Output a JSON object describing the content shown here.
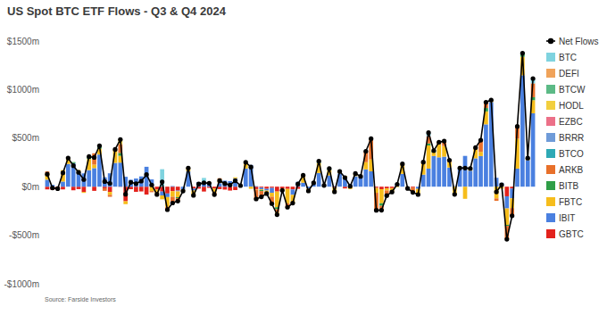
{
  "chart_data": {
    "type": "bar",
    "title": "US Spot BTC ETF Flows - Q3 & Q4 2024",
    "source": "Source: Farside Investors",
    "stacked": true,
    "grid": false,
    "legend": "right",
    "tick_labels": "y",
    "ylim": [
      -1000,
      1500
    ],
    "yticks": [
      {
        "value": -1000,
        "label": "-$1000m"
      },
      {
        "value": -500,
        "label": "-$500m"
      },
      {
        "value": 0,
        "label": "$0m"
      },
      {
        "value": 500,
        "label": "$500m"
      },
      {
        "value": 1000,
        "label": "$1000m"
      },
      {
        "value": 1500,
        "label": "$1500m"
      }
    ],
    "categories": [
      null,
      null,
      null,
      null,
      null,
      null,
      null,
      null,
      null,
      null,
      null,
      null,
      null,
      null,
      null,
      null,
      null,
      null,
      null,
      null,
      null,
      null,
      null,
      null,
      null,
      null,
      null,
      null,
      null,
      null,
      null,
      null,
      null,
      null,
      null,
      null,
      null,
      null,
      null,
      null,
      null,
      null,
      null,
      null,
      null,
      null,
      null,
      null,
      null,
      null,
      null,
      null,
      null,
      null,
      null,
      null,
      null,
      null,
      null,
      null,
      null,
      null,
      null,
      null,
      null,
      null,
      null,
      null,
      null,
      null,
      null,
      null,
      null,
      null,
      null,
      null,
      null,
      null,
      null,
      null,
      null,
      null,
      null,
      null,
      null,
      null,
      null,
      null,
      null,
      null,
      null,
      null,
      null,
      null
    ],
    "series": [
      {
        "name": "Net Flows",
        "type": "line",
        "color": "#000000",
        "marker": "circle",
        "values": [
          129,
          -13,
          -20,
          143,
          295,
          216,
          147,
          73,
          310,
          301,
          422,
          53,
          34,
          384,
          486,
          -78,
          45,
          31,
          57,
          124,
          18,
          -80,
          50,
          -237,
          -168,
          -148,
          -45,
          192,
          -89,
          28,
          40,
          36,
          -82,
          62,
          32,
          17,
          61,
          11,
          252,
          202,
          -127,
          -105,
          -71,
          -175,
          -288,
          -38,
          -212,
          -169,
          28,
          117,
          -44,
          39,
          263,
          13,
          187,
          -53,
          158,
          93,
          4,
          136,
          106,
          365,
          494,
          -243,
          -242,
          -92,
          -55,
          25,
          235,
          -18,
          -59,
          -81,
          253,
          556,
          371,
          458,
          470,
          273,
          -79,
          192,
          192,
          188,
          402,
          479,
          870,
          893,
          -54,
          20,
          -541,
          -300,
          621,
          1376,
          294,
          1114
        ]
      },
      {
        "name": "BTC",
        "type": "bar",
        "color": "#7fd3df",
        "values": [
          0,
          0,
          0,
          0,
          0,
          0,
          0,
          0,
          0,
          0,
          0,
          0,
          0,
          0,
          0,
          0,
          0,
          0,
          0,
          0,
          0,
          0,
          180,
          0,
          0,
          0,
          0,
          0,
          0,
          0,
          40,
          0,
          0,
          0,
          0,
          0,
          0,
          0,
          0,
          0,
          0,
          0,
          0,
          0,
          0,
          0,
          0,
          0,
          0,
          0,
          0,
          0,
          0,
          0,
          0,
          0,
          0,
          0,
          0,
          0,
          0,
          0,
          0,
          0,
          0,
          0,
          0,
          0,
          0,
          0,
          0,
          0,
          0,
          37,
          0,
          0,
          0,
          0,
          0,
          0,
          0,
          0,
          0,
          0,
          0,
          0,
          0,
          0,
          0,
          0,
          0,
          0,
          0,
          50
        ]
      },
      {
        "name": "DEFI",
        "type": "bar",
        "color": "#f0a35a",
        "values": [
          0,
          0,
          0,
          0,
          0,
          0,
          0,
          0,
          0,
          0,
          0,
          0,
          0,
          0,
          0,
          0,
          0,
          0,
          0,
          0,
          0,
          0,
          0,
          0,
          0,
          0,
          0,
          0,
          0,
          0,
          0,
          0,
          0,
          0,
          0,
          0,
          0,
          0,
          0,
          0,
          0,
          0,
          0,
          0,
          0,
          0,
          0,
          0,
          0,
          0,
          0,
          0,
          0,
          0,
          0,
          0,
          0,
          0,
          0,
          0,
          0,
          0,
          0,
          0,
          0,
          0,
          0,
          0,
          0,
          0,
          0,
          0,
          0,
          0,
          0,
          0,
          0,
          0,
          0,
          0,
          0,
          0,
          0,
          0,
          0,
          0,
          0,
          0,
          0,
          0,
          0,
          0,
          0,
          0
        ]
      },
      {
        "name": "BTCW",
        "type": "bar",
        "color": "#5cba86",
        "values": [
          0,
          0,
          0,
          0,
          0,
          0,
          0,
          0,
          0,
          0,
          0,
          0,
          0,
          0,
          0,
          0,
          0,
          0,
          0,
          0,
          0,
          0,
          0,
          0,
          0,
          0,
          0,
          0,
          0,
          0,
          0,
          0,
          0,
          0,
          0,
          0,
          0,
          0,
          0,
          0,
          0,
          0,
          0,
          0,
          0,
          0,
          0,
          0,
          0,
          0,
          0,
          0,
          0,
          0,
          0,
          0,
          0,
          0,
          0,
          0,
          0,
          0,
          10,
          0,
          0,
          0,
          0,
          0,
          0,
          0,
          0,
          0,
          0,
          0,
          0,
          0,
          0,
          0,
          0,
          0,
          0,
          0,
          0,
          0,
          0,
          0,
          0,
          0,
          0,
          0,
          0,
          0,
          0,
          0
        ]
      },
      {
        "name": "HODL",
        "type": "bar",
        "color": "#f2cf3e",
        "values": [
          0,
          0,
          0,
          0,
          0,
          0,
          0,
          0,
          0,
          0,
          0,
          0,
          0,
          0,
          50,
          0,
          0,
          0,
          0,
          0,
          0,
          0,
          0,
          0,
          0,
          0,
          0,
          0,
          0,
          0,
          0,
          0,
          0,
          0,
          0,
          0,
          0,
          0,
          0,
          0,
          0,
          0,
          0,
          0,
          -22,
          0,
          0,
          0,
          0,
          0,
          0,
          0,
          0,
          0,
          0,
          0,
          0,
          0,
          0,
          0,
          0,
          0,
          0,
          0,
          0,
          0,
          0,
          0,
          0,
          0,
          0,
          0,
          0,
          0,
          0,
          0,
          0,
          0,
          0,
          0,
          0,
          0,
          0,
          0,
          0,
          0,
          0,
          0,
          0,
          0,
          0,
          0,
          0,
          0
        ]
      },
      {
        "name": "EZBC",
        "type": "bar",
        "color": "#ec7088",
        "values": [
          0,
          0,
          0,
          0,
          0,
          0,
          0,
          0,
          0,
          0,
          0,
          0,
          0,
          0,
          0,
          0,
          0,
          0,
          0,
          0,
          0,
          0,
          0,
          0,
          0,
          0,
          0,
          0,
          0,
          0,
          0,
          0,
          0,
          0,
          0,
          0,
          0,
          0,
          0,
          0,
          0,
          0,
          0,
          0,
          0,
          0,
          0,
          0,
          0,
          0,
          0,
          0,
          0,
          0,
          0,
          0,
          0,
          0,
          0,
          0,
          0,
          0,
          0,
          0,
          0,
          0,
          0,
          0,
          0,
          0,
          0,
          0,
          0,
          5,
          0,
          0,
          0,
          0,
          0,
          0,
          0,
          0,
          0,
          0,
          0,
          0,
          0,
          0,
          0,
          0,
          0,
          0,
          0,
          0
        ]
      },
      {
        "name": "BRRR",
        "type": "bar",
        "color": "#6f9bd8",
        "values": [
          0,
          0,
          0,
          0,
          0,
          0,
          0,
          0,
          0,
          0,
          0,
          0,
          0,
          0,
          0,
          0,
          0,
          0,
          0,
          0,
          0,
          0,
          0,
          0,
          0,
          0,
          0,
          0,
          0,
          0,
          0,
          0,
          0,
          0,
          0,
          0,
          0,
          0,
          0,
          0,
          0,
          0,
          0,
          0,
          0,
          0,
          0,
          0,
          0,
          0,
          0,
          0,
          10,
          0,
          0,
          0,
          0,
          0,
          0,
          0,
          0,
          0,
          0,
          0,
          0,
          0,
          0,
          0,
          0,
          0,
          0,
          0,
          0,
          0,
          0,
          0,
          0,
          0,
          0,
          0,
          0,
          0,
          0,
          0,
          0,
          0,
          0,
          0,
          0,
          0,
          0,
          0,
          0,
          0
        ]
      },
      {
        "name": "BTCO",
        "type": "bar",
        "color": "#2ea9b5",
        "values": [
          0,
          0,
          0,
          0,
          0,
          0,
          0,
          0,
          0,
          0,
          10,
          0,
          0,
          0,
          0,
          0,
          0,
          0,
          0,
          0,
          0,
          0,
          0,
          0,
          0,
          0,
          0,
          0,
          0,
          0,
          0,
          0,
          0,
          0,
          0,
          0,
          0,
          0,
          0,
          0,
          0,
          0,
          0,
          0,
          0,
          0,
          0,
          0,
          0,
          0,
          0,
          0,
          0,
          0,
          0,
          0,
          0,
          0,
          0,
          0,
          0,
          0,
          0,
          0,
          0,
          0,
          0,
          0,
          0,
          0,
          0,
          0,
          0,
          0,
          0,
          0,
          0,
          0,
          0,
          0,
          0,
          0,
          0,
          0,
          0,
          0,
          0,
          0,
          0,
          0,
          0,
          0,
          0,
          0
        ]
      },
      {
        "name": "ARKB",
        "type": "bar",
        "color": "#e8702a",
        "values": [
          20,
          0,
          -2,
          0,
          0,
          0,
          0,
          0,
          0,
          117,
          0,
          -27,
          -20,
          0,
          90,
          0,
          0,
          0,
          0,
          0,
          -12,
          -10,
          0,
          -30,
          -70,
          -30,
          0,
          0,
          0,
          0,
          0,
          0,
          -22,
          10,
          0,
          0,
          0,
          0,
          0,
          0,
          -102,
          -60,
          0,
          -72,
          -34,
          0,
          -40,
          0,
          0,
          13,
          0,
          0,
          0,
          0,
          0,
          0,
          0,
          0,
          0,
          0,
          0,
          113,
          203,
          -180,
          -45,
          -53,
          0,
          0,
          0,
          -13,
          -50,
          0,
          12,
          69,
          0,
          23,
          51,
          20,
          0,
          0,
          0,
          0,
          0,
          120,
          60,
          0,
          -25,
          0,
          -138,
          -80,
          127,
          0,
          0,
          143
        ]
      },
      {
        "name": "BITB",
        "type": "bar",
        "color": "#2f9e47",
        "values": [
          0,
          0,
          0,
          0,
          0,
          10,
          0,
          0,
          25,
          0,
          20,
          0,
          0,
          0,
          30,
          0,
          0,
          0,
          0,
          0,
          0,
          0,
          0,
          0,
          0,
          -10,
          0,
          0,
          0,
          0,
          0,
          0,
          0,
          0,
          0,
          0,
          0,
          0,
          0,
          0,
          0,
          -10,
          0,
          0,
          -20,
          0,
          0,
          0,
          0,
          0,
          0,
          0,
          10,
          0,
          15,
          0,
          0,
          0,
          0,
          0,
          0,
          0,
          0,
          0,
          -26,
          0,
          0,
          0,
          0,
          0,
          0,
          0,
          0,
          20,
          20,
          0,
          0,
          0,
          0,
          0,
          0,
          0,
          0,
          0,
          35,
          9,
          0,
          0,
          -10,
          0,
          0,
          38,
          0,
          30
        ]
      },
      {
        "name": "FBTC",
        "type": "bar",
        "color": "#f6bd1c",
        "values": [
          65,
          0,
          -5,
          118,
          61,
          0,
          20,
          -10,
          115,
          36,
          61,
          0,
          -30,
          139,
          70,
          -30,
          0,
          0,
          0,
          0,
          -45,
          -40,
          -40,
          -100,
          -58,
          -60,
          -16,
          35,
          -50,
          0,
          0,
          8,
          -40,
          40,
          0,
          0,
          10,
          0,
          65,
          -22,
          -5,
          -8,
          -31,
          -40,
          -162,
          -18,
          -149,
          -85,
          0,
          63,
          -24,
          10,
          102,
          0,
          56,
          -50,
          20,
          17,
          -24,
          28,
          0,
          74,
          123,
          -50,
          -145,
          -22,
          -40,
          -6,
          103,
          -5,
          -1,
          -58,
          117,
          239,
          35,
          133,
          110,
          56,
          -84,
          5,
          -125,
          23,
          110,
          44,
          133,
          12,
          -121,
          -20,
          -169,
          -100,
          308,
          191,
          20,
          135
        ]
      },
      {
        "name": "IBIT",
        "type": "bar",
        "color": "#4a80e0",
        "values": [
          72,
          19,
          0,
          53,
          234,
          243,
          152,
          137,
          170,
          191,
          331,
          96,
          138,
          245,
          248,
          102,
          71,
          84,
          106,
          205,
          75,
          0,
          -40,
          -37,
          6,
          -8,
          -29,
          157,
          -19,
          48,
          50,
          40,
          0,
          37,
          62,
          57,
          86,
          11,
          187,
          224,
          5,
          -18,
          -18,
          -50,
          0,
          0,
          0,
          -56,
          50,
          41,
          -20,
          29,
          141,
          13,
          116,
          5,
          138,
          94,
          28,
          108,
          106,
          178,
          158,
          0,
          0,
          0,
          0,
          31,
          132,
          0,
          0,
          -23,
          124,
          186,
          316,
          302,
          309,
          197,
          5,
          187,
          317,
          165,
          292,
          315,
          642,
          872,
          92,
          40,
          -125,
          -100,
          186,
          1147,
          274,
          756
        ]
      },
      {
        "name": "GBTC",
        "type": "bar",
        "color": "#e3221c",
        "values": [
          -28,
          -32,
          -13,
          -28,
          0,
          -37,
          -25,
          -54,
          0,
          -43,
          0,
          -16,
          -54,
          0,
          -2,
          -150,
          -26,
          -53,
          -49,
          -81,
          0,
          -30,
          -50,
          -70,
          -46,
          -40,
          0,
          0,
          -20,
          -20,
          -50,
          -12,
          -20,
          -25,
          -30,
          -40,
          -35,
          0,
          0,
          0,
          -25,
          -9,
          -22,
          -13,
          -50,
          -20,
          -23,
          -28,
          -22,
          0,
          0,
          0,
          0,
          0,
          0,
          -8,
          0,
          -18,
          0,
          0,
          0,
          0,
          0,
          -13,
          -26,
          -17,
          -15,
          0,
          0,
          0,
          -8,
          0,
          0,
          0,
          0,
          0,
          0,
          0,
          0,
          0,
          0,
          0,
          0,
          0,
          0,
          0,
          0,
          0,
          -99,
          -20,
          0,
          0,
          0,
          0
        ]
      }
    ]
  }
}
